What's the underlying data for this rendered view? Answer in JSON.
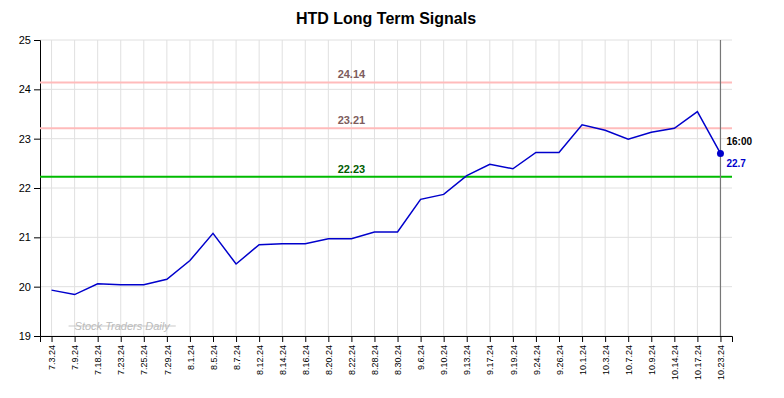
{
  "chart_data": {
    "type": "line",
    "title": "HTD Long Term Signals",
    "categories": [
      "7.3.24",
      "7.9.24",
      "7.18.24",
      "7.23.24",
      "7.25.24",
      "7.29.24",
      "8.1.24",
      "8.5.24",
      "8.7.24",
      "8.12.24",
      "8.14.24",
      "8.16.24",
      "8.20.24",
      "8.22.24",
      "8.28.24",
      "8.30.24",
      "9.6.24",
      "9.10.24",
      "9.13.24",
      "9.17.24",
      "9.19.24",
      "9.24.24",
      "9.26.24",
      "10.1.24",
      "10.3.24",
      "10.7.24",
      "10.9.24",
      "10.14.24",
      "10.17.24",
      "10.23.24"
    ],
    "values": [
      19.93,
      19.84,
      20.06,
      20.04,
      20.04,
      20.15,
      20.53,
      21.08,
      20.46,
      20.85,
      20.87,
      20.87,
      20.97,
      20.97,
      21.11,
      21.11,
      21.77,
      21.87,
      22.25,
      22.48,
      22.39,
      22.72,
      22.72,
      23.28,
      23.17,
      22.99,
      23.13,
      23.21,
      23.55,
      22.7
    ],
    "color": "#0000cc",
    "hlines": [
      {
        "value": 24.14,
        "label": "24.14",
        "color": "#ffbbbb"
      },
      {
        "value": 23.21,
        "label": "23.21",
        "color": "#ffbbbb"
      },
      {
        "value": 22.23,
        "label": "22.23",
        "color": "#00bb00"
      }
    ],
    "annotations": [
      {
        "text": "16:00"
      },
      {
        "text": "22.7",
        "value": 22.7
      }
    ],
    "watermark": "Stock Traders Daily",
    "ylim": [
      19,
      25
    ],
    "yticks": [
      19,
      20,
      21,
      22,
      23,
      24,
      25
    ],
    "grid": true
  }
}
